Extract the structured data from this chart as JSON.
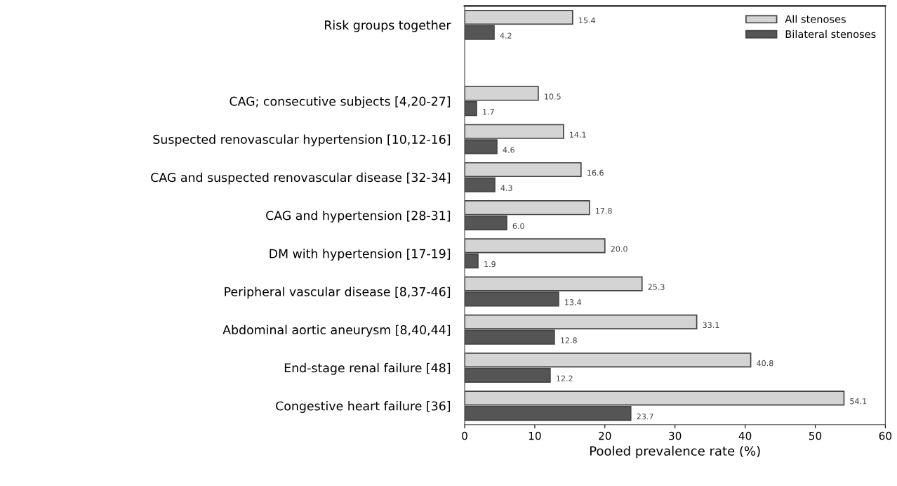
{
  "chart_data": {
    "type": "bar",
    "orientation": "horizontal",
    "xlabel": "Pooled prevalence rate (%)",
    "categories": [
      "Risk groups together",
      null,
      "CAG; consecutive subjects [4,20-27]",
      "Suspected renovascular hypertension [10,12-16]",
      "CAG and suspected renovascular disease [32-34]",
      "CAG and hypertension [28-31]",
      "DM with hypertension [17-19]",
      "Peripheral vascular disease [8,37-46]",
      "Abdominal aortic aneurysm [8,40,44]",
      "End-stage renal failure [48]",
      "Congestive heart failure [36]"
    ],
    "series": [
      {
        "name": "All stenoses",
        "color": "#d4d4d4",
        "values": [
          15.4,
          null,
          10.5,
          14.1,
          16.6,
          17.8,
          20.0,
          25.3,
          33.1,
          40.8,
          54.1
        ],
        "value_labels": [
          "15.4",
          null,
          "10.5",
          "14.1",
          "16.6",
          "17.8",
          "20.0",
          "25.3",
          "33.1",
          "40.8",
          "54.1"
        ]
      },
      {
        "name": "Bilateral stenoses",
        "color": "#555555",
        "values": [
          4.2,
          null,
          1.7,
          4.6,
          4.3,
          6.0,
          1.9,
          13.4,
          12.8,
          12.2,
          23.7
        ],
        "value_labels": [
          "4.2",
          null,
          "1.7",
          "4.6",
          "4.3",
          "6.0",
          "1.9",
          "13.4",
          "12.8",
          "12.2",
          "23.7"
        ]
      }
    ],
    "xlim": [
      0,
      60
    ],
    "xticks": [
      0,
      10,
      20,
      30,
      40,
      50,
      60
    ],
    "legend": "top right",
    "grid": false
  }
}
